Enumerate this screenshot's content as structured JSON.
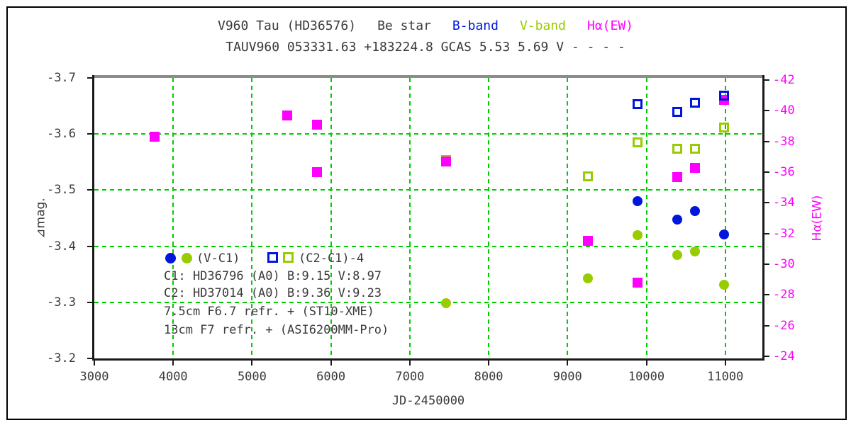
{
  "header": {
    "title_segments": [
      {
        "text": "V960 Tau (HD36576)",
        "color": "#3a3a3a"
      },
      {
        "text": "Be star",
        "color": "#3a3a3a"
      },
      {
        "text": "B-band",
        "color": "#0016dd"
      },
      {
        "text": "V-band",
        "color": "#99cc00"
      },
      {
        "text": "Hα(EW)",
        "color": "#ff00ff"
      }
    ],
    "subtitle": "TAUV960 053331.63 +183224.8 GCAS 5.53 5.69 V - - - -"
  },
  "colors": {
    "b_band": "#0016dd",
    "v_band": "#99cc00",
    "halpha": "#ff00ff",
    "grid": "#00cc00",
    "frame": "#1a1a1a",
    "frame_top": "#8c8c8c",
    "text": "#3a3a3a"
  },
  "legend": {
    "vc1_label": "(V-C1)",
    "c2c1_label": "(C2-C1)-4",
    "comp1": "C1: HD36796 (A0) B:9.15 V:8.97",
    "comp2": "C2: HD37014 (A0) B:9.36 V:9.23",
    "scope1": "7.5cm F6.7 refr. + (ST10-XME)",
    "scope2": "13cm F7 refr. + (ASI6200MM-Pro)"
  },
  "chart_data": {
    "type": "scatter",
    "title": "V960 Tau (HD36576) Be star",
    "xlabel": "JD-2450000",
    "ylabel_left": "⊿mag.",
    "ylabel_right": "Hα(EW)",
    "x_axis": {
      "min": 3000,
      "max": 11470,
      "ticks": [
        3000,
        4000,
        5000,
        6000,
        7000,
        8000,
        9000,
        10000,
        11000
      ]
    },
    "y_left": {
      "min_top": -3.7,
      "max_bottom": -3.2,
      "ticks": [
        -3.7,
        -3.6,
        -3.5,
        -3.4,
        -3.3,
        -3.2
      ]
    },
    "y_right": {
      "value_at_top": -42.14,
      "value_at_bottom": -23.86,
      "ticks": [
        -42,
        -40,
        -38,
        -36,
        -34,
        -32,
        -30,
        -28,
        -26,
        -24
      ]
    },
    "grid": {
      "x_lines": [
        4000,
        5000,
        6000,
        7000,
        8000,
        9000,
        10000,
        11000
      ],
      "y_lines": [
        -3.6,
        -3.5,
        -3.4,
        -3.3
      ]
    },
    "series": [
      {
        "id": "c2c1_v",
        "name": "(C2-C1)-4 V-band",
        "axis": "left",
        "marker": "square-open",
        "color": "v_band",
        "points": [
          [
            7460,
            -3.554
          ],
          [
            9260,
            -3.524
          ],
          [
            9890,
            -3.585
          ],
          [
            10390,
            -3.574
          ],
          [
            10620,
            -3.574
          ],
          [
            10980,
            -3.611
          ]
        ]
      },
      {
        "id": "halpha",
        "name": "Hα(EW)",
        "axis": "right",
        "marker": "square-filled",
        "color": "halpha",
        "points": [
          [
            3760,
            -38.3
          ],
          [
            5450,
            -39.7
          ],
          [
            5820,
            -39.1
          ],
          [
            5820,
            -36.0
          ],
          [
            7460,
            -36.7
          ],
          [
            9260,
            -31.5
          ],
          [
            9890,
            -28.8
          ],
          [
            10390,
            -35.7
          ],
          [
            10620,
            -36.3
          ],
          [
            10980,
            -40.7
          ]
        ]
      },
      {
        "id": "c2c1_b",
        "name": "(C2-C1)-4 B-band",
        "axis": "left",
        "marker": "square-open",
        "color": "b_band",
        "points": [
          [
            9890,
            -3.653
          ],
          [
            10390,
            -3.639
          ],
          [
            10620,
            -3.656
          ],
          [
            10980,
            -3.668
          ]
        ]
      },
      {
        "id": "vc1_v",
        "name": "(V-C1) V-band",
        "axis": "left",
        "marker": "circle-filled",
        "color": "v_band",
        "points": [
          [
            7460,
            -3.298
          ],
          [
            9260,
            -3.343
          ],
          [
            9890,
            -3.42
          ],
          [
            10390,
            -3.384
          ],
          [
            10620,
            -3.391
          ],
          [
            10980,
            -3.331
          ]
        ]
      },
      {
        "id": "vc1_b",
        "name": "(V-C1) B-band",
        "axis": "left",
        "marker": "circle-filled",
        "color": "b_band",
        "points": [
          [
            9890,
            -3.48
          ],
          [
            10390,
            -3.448
          ],
          [
            10620,
            -3.462
          ],
          [
            10980,
            -3.421
          ]
        ]
      }
    ]
  }
}
